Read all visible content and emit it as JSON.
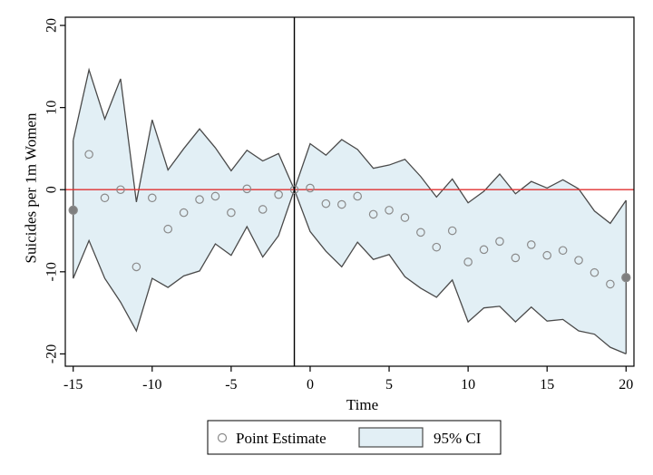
{
  "chart_data": {
    "type": "line",
    "title": "",
    "xlabel": "Time",
    "ylabel": "Suicides per 1m Women",
    "xlim": [
      -15.5,
      20.5
    ],
    "ylim": [
      -21.5,
      21
    ],
    "xticks": [
      -15,
      -10,
      -5,
      0,
      5,
      10,
      15,
      20
    ],
    "yticks": [
      -20,
      -10,
      0,
      10,
      20
    ],
    "xtick_labels": [
      "-15",
      "-10",
      "-5",
      "0",
      "5",
      "10",
      "15",
      "20"
    ],
    "ytick_labels": [
      "-20",
      "-10",
      "0",
      "10",
      "20"
    ],
    "grid": false,
    "legend_position": "bottom",
    "x": [
      -15,
      -14,
      -13,
      -12,
      -11,
      -10,
      -9,
      -8,
      -7,
      -6,
      -5,
      -4,
      -3,
      -2,
      -1,
      0,
      1,
      2,
      3,
      4,
      5,
      6,
      7,
      8,
      9,
      10,
      11,
      12,
      13,
      14,
      15,
      16,
      17,
      18,
      19,
      20
    ],
    "series": [
      {
        "name": "Point Estimate",
        "values": [
          -2.5,
          4.3,
          -1,
          0,
          -9.4,
          -1,
          -4.8,
          -2.8,
          -1.2,
          -0.8,
          -2.8,
          0.1,
          -2.4,
          -0.6,
          0,
          0.2,
          -1.7,
          -1.8,
          -0.8,
          -3.0,
          -2.5,
          -3.4,
          -5.2,
          -7.0,
          -5.0,
          -8.8,
          -7.3,
          -6.3,
          -8.3,
          -6.7,
          -8.0,
          -7.4,
          -8.6,
          -10.1,
          -11.5,
          -10.7
        ]
      },
      {
        "name": "95% CI",
        "upper": [
          6,
          14.6,
          8.6,
          13.5,
          -1.5,
          8.5,
          2.4,
          5,
          7.4,
          5.1,
          2.3,
          4.8,
          3.5,
          4.4,
          0,
          5.6,
          4.2,
          6.1,
          4.9,
          2.6,
          3.0,
          3.7,
          1.6,
          -0.9,
          1.3,
          -1.6,
          -0.2,
          1.9,
          -0.5,
          1.0,
          0.2,
          1.2,
          0.1,
          -2.6,
          -4.1,
          -1.3
        ],
        "lower": [
          -10.8,
          -6.2,
          -10.8,
          -13.7,
          -17.2,
          -10.8,
          -11.9,
          -10.5,
          -9.9,
          -6.6,
          -8.0,
          -4.5,
          -8.2,
          -5.6,
          0,
          -5.1,
          -7.5,
          -9.4,
          -6.4,
          -8.5,
          -7.9,
          -10.6,
          -12.0,
          -13.1,
          -11.0,
          -16.1,
          -14.4,
          -14.2,
          -16.1,
          -14.3,
          -16.0,
          -15.8,
          -17.2,
          -17.6,
          -19.2,
          -20.0
        ]
      }
    ],
    "reference_lines": {
      "vertical_x": -1,
      "horizontal_y": 0
    },
    "colors": {
      "ci_fill": "#e2eff5",
      "ci_stroke": "#4a4a4a",
      "marker_stroke": "#8a8a8a",
      "marker_filled": "#7f7f7f",
      "zero_line": "#e03030",
      "vline": "#000000",
      "frame": "#000000"
    }
  },
  "legend": {
    "point_label": "Point Estimate",
    "ci_label": "95% CI"
  }
}
